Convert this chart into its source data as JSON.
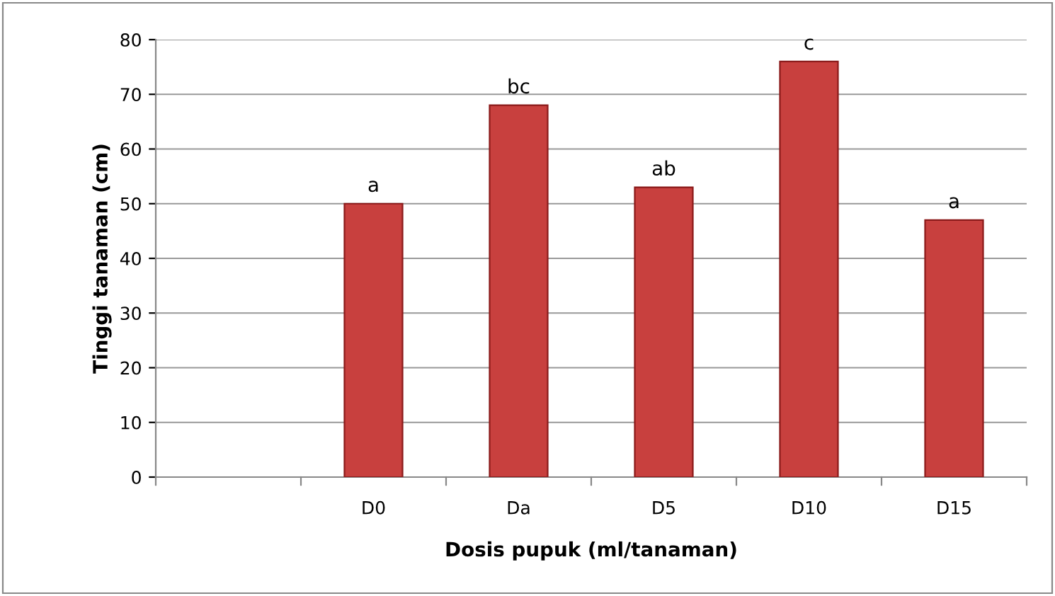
{
  "chart_data": {
    "type": "bar",
    "xlabel": "Dosis pupuk (ml/tanaman)",
    "ylabel": "Tinggi tanaman (cm)",
    "categories": [
      null,
      "D0",
      "Da",
      "D5",
      "D10",
      "D15"
    ],
    "values": [
      null,
      50,
      68,
      53,
      76,
      47
    ],
    "color": "#c8403e",
    "ylim": [
      0,
      80
    ],
    "yticks": [
      0,
      10,
      20,
      30,
      40,
      50,
      60,
      70,
      80
    ],
    "grid": "y",
    "annotations": [
      {
        "text": "a",
        "x": "D0",
        "y": 50
      },
      {
        "text": "bc",
        "x": "Da",
        "y": 68
      },
      {
        "text": "ab",
        "x": "D5",
        "y": 53
      },
      {
        "text": "c",
        "x": "D10",
        "y": 76
      },
      {
        "text": "a",
        "x": "D15",
        "y": 47
      }
    ]
  }
}
